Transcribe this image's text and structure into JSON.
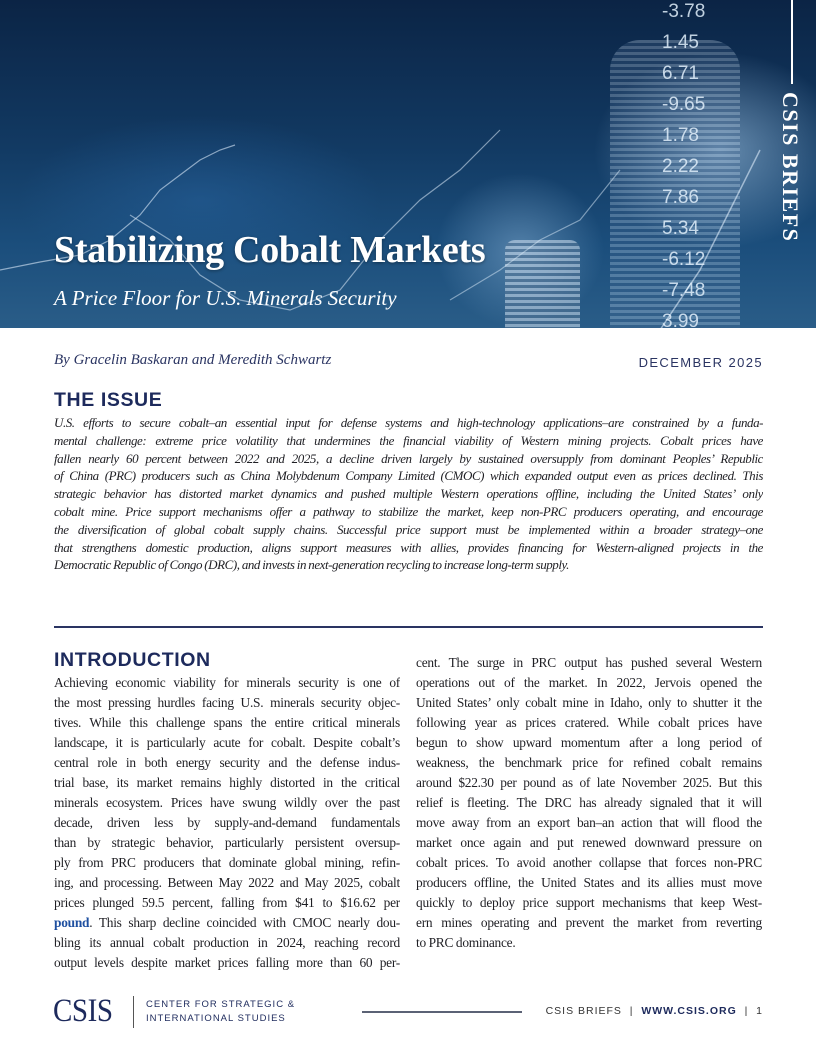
{
  "hero": {
    "title": "Stabilizing Cobalt Markets",
    "subtitle": "A Price Floor for U.S. Minerals Security",
    "series_label": "CSIS BRIEFS",
    "background_numbers": [
      "-3.78",
      "1.45",
      "6.71",
      "-9.65",
      "1.78",
      "2.22",
      "7.86",
      "5.34",
      "-6.12",
      "-7.48",
      "3.99"
    ]
  },
  "byline": "By Gracelin Baskaran and Meredith Schwartz",
  "date": "DECEMBER 2025",
  "issue": {
    "heading": "THE ISSUE",
    "lines": [
      "U.S. efforts to secure cobalt–an essential input for defense systems and high-technology applications–are constrained by a funda-",
      "mental challenge: extreme price volatility that undermines the financial viability of Western mining projects. Cobalt prices have",
      "fallen nearly 60 percent between 2022 and 2025, a decline driven largely by sustained oversupply from dominant Peoples’ Republic",
      "of China (PRC) producers such as China Molybdenum Company Limited (CMOC) which expanded output even as prices declined. This",
      "strategic behavior has distorted market dynamics and pushed multiple Western operations offline, including the United States’ only",
      "cobalt mine. Price support mechanisms offer a pathway to stabilize the market, keep non-PRC producers operating, and encourage",
      "the diversification of global cobalt supply chains. Successful price support must be implemented within a broader strategy–one",
      "that strengthens domestic production, aligns support measures with allies, provides financing for Western-aligned projects in the",
      "Democratic Republic of Congo (DRC), and invests in next-generation recycling to increase long-term supply."
    ]
  },
  "introduction": {
    "heading": "INTRODUCTION",
    "left_lines": [
      "Achieving economic viability for minerals security is one of",
      "the most pressing hurdles facing U.S. minerals security objec-",
      "tives. While this challenge spans the entire critical minerals",
      "landscape, it is particularly acute for cobalt. Despite cobalt’s",
      "central role in both energy security and the defense indus-",
      "trial base, its market remains highly distorted in the critical",
      "minerals ecosystem. Prices have swung wildly over the past",
      "decade, driven less by supply-and-demand fundamentals",
      "than by strategic behavior, particularly persistent oversup-",
      "ply from PRC producers that dominate global mining, refin-",
      "ing, and processing. Between May 2022 and May 2025, cobalt",
      "prices plunged 59.5 percent, falling from $41 to $16.62 per"
    ],
    "link_text": "pound",
    "link_line_rest": ". This sharp decline coincided with CMOC nearly dou-",
    "left_lines_after": [
      "bling its annual cobalt production in 2024, reaching record",
      "output levels despite market prices falling more than 60 per-"
    ],
    "right_lines": [
      "cent. The surge in PRC output has pushed several Western",
      "operations out of the market. In 2022, Jervois opened the",
      "United States’ only cobalt mine in Idaho, only to shutter it the",
      "following year as prices cratered. While cobalt prices have",
      "begun to show upward momentum after a long period of",
      "weakness, the benchmark price for refined cobalt remains",
      "around $22.30 per pound as of late November 2025. But this",
      "relief is fleeting. The DRC has already signaled that it will",
      "move away from an export ban–an action that will flood the",
      "market once again and put renewed downward pressure on",
      "cobalt prices. To avoid another collapse that forces non-PRC",
      "producers offline, the United States and its allies must move",
      "quickly to deploy price support mechanisms that keep West-",
      "ern mines operating and prevent the market from reverting",
      "to PRC dominance."
    ]
  },
  "footer": {
    "logo": "CSIS",
    "org_line1": "CENTER FOR STRATEGIC &",
    "org_line2": "INTERNATIONAL STUDIES",
    "series": "CSIS BRIEFS",
    "website": "WWW.CSIS.ORG",
    "page": "1"
  },
  "colors": {
    "navy": "#1d2a5c",
    "link": "#1e4fa0",
    "hero": "#123a63"
  }
}
